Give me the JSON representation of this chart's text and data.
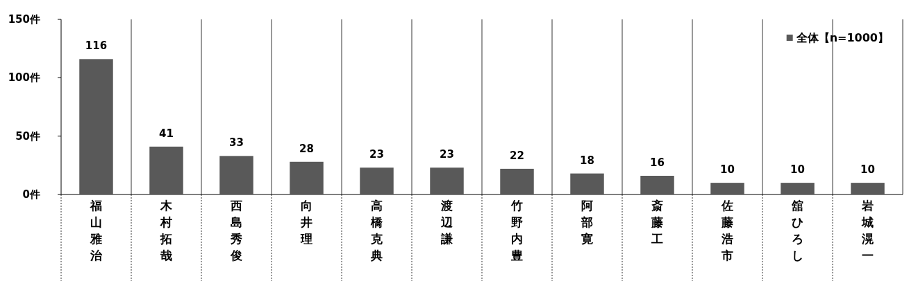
{
  "chart_data": {
    "type": "bar",
    "categories": [
      "福山雅治",
      "木村拓哉",
      "西島秀俊",
      "向井理",
      "高橋克典",
      "渡辺謙",
      "竹野内豊",
      "阿部寛",
      "斎藤工",
      "佐藤浩市",
      "舘ひろし",
      "岩城滉一"
    ],
    "series": [
      {
        "name": "全体【n=1000】",
        "color": "#595959",
        "values": [
          116,
          41,
          33,
          28,
          23,
          23,
          22,
          18,
          16,
          10,
          10,
          10
        ]
      }
    ],
    "ylim": [
      0,
      150
    ],
    "yticks": [
      {
        "value": 0,
        "label": "0件"
      },
      {
        "value": 50,
        "label": "50件"
      },
      {
        "value": 100,
        "label": "100件"
      },
      {
        "value": 150,
        "label": "150件"
      }
    ],
    "data_labels": true,
    "grid": "x",
    "legend": "top right"
  }
}
